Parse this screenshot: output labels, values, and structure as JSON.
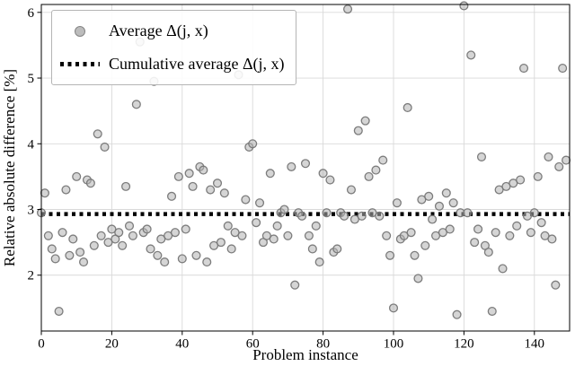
{
  "chart_data": {
    "type": "scatter",
    "title": "",
    "xlabel": "Problem instance",
    "ylabel": "Relative absolute difference [%]",
    "xlim": [
      0,
      150
    ],
    "ylim": [
      1.15,
      6.12
    ],
    "x_ticks": [
      0,
      20,
      40,
      60,
      80,
      100,
      120,
      140
    ],
    "y_ticks": [
      2,
      3,
      4,
      5,
      6
    ],
    "grid": true,
    "legend": [
      "Average Δ(j, x)",
      "Cumulative average Δ(j, x)"
    ],
    "legend_position": "upper left",
    "cumulative_average": 2.93,
    "marker_color": "#b3b3b3",
    "marker_edge_color": "#767676",
    "line_color": "#000000",
    "grid_color": "#d9d9d9",
    "series": [
      {
        "name": "Average Δ(j, x)",
        "x": [
          0,
          1,
          2,
          3,
          4,
          5,
          6,
          7,
          8,
          9,
          10,
          11,
          12,
          13,
          14,
          15,
          16,
          17,
          18,
          19,
          20,
          21,
          22,
          23,
          24,
          25,
          26,
          27,
          28,
          29,
          30,
          31,
          32,
          33,
          34,
          35,
          36,
          37,
          38,
          39,
          40,
          41,
          42,
          43,
          44,
          45,
          46,
          47,
          48,
          49,
          50,
          51,
          52,
          53,
          54,
          55,
          56,
          57,
          58,
          59,
          60,
          61,
          62,
          63,
          64,
          65,
          66,
          67,
          68,
          69,
          70,
          71,
          72,
          73,
          74,
          75,
          76,
          77,
          78,
          79,
          80,
          81,
          82,
          83,
          84,
          85,
          86,
          87,
          88,
          89,
          90,
          91,
          92,
          93,
          94,
          95,
          96,
          97,
          98,
          99,
          100,
          101,
          102,
          103,
          104,
          105,
          106,
          107,
          108,
          109,
          110,
          111,
          112,
          113,
          114,
          115,
          116,
          117,
          118,
          119,
          120,
          121,
          122,
          123,
          124,
          125,
          126,
          127,
          128,
          129,
          130,
          131,
          132,
          133,
          134,
          135,
          136,
          137,
          138,
          139,
          140,
          141,
          142,
          143,
          144,
          145,
          146,
          147,
          148,
          149
        ],
        "y": [
          2.95,
          3.25,
          2.6,
          2.4,
          2.25,
          1.45,
          2.65,
          3.3,
          2.3,
          2.55,
          3.5,
          2.35,
          2.2,
          3.45,
          3.4,
          2.45,
          4.15,
          2.6,
          3.95,
          2.5,
          2.7,
          2.55,
          2.65,
          2.45,
          3.35,
          2.75,
          2.6,
          4.6,
          5.55,
          2.65,
          2.7,
          2.4,
          4.95,
          2.3,
          2.55,
          2.2,
          2.6,
          3.2,
          2.65,
          3.5,
          2.25,
          2.7,
          3.55,
          3.35,
          2.3,
          3.65,
          3.6,
          2.2,
          3.3,
          2.45,
          3.4,
          2.5,
          3.25,
          2.75,
          2.4,
          2.65,
          5.05,
          2.6,
          3.15,
          3.95,
          4.0,
          2.8,
          3.1,
          2.5,
          2.6,
          3.55,
          2.55,
          2.75,
          2.95,
          3.0,
          2.6,
          3.65,
          1.85,
          2.95,
          2.9,
          3.7,
          2.6,
          2.4,
          2.75,
          2.2,
          3.55,
          2.95,
          3.45,
          2.35,
          2.4,
          2.95,
          2.9,
          6.05,
          3.3,
          2.85,
          4.2,
          2.9,
          4.35,
          3.5,
          2.95,
          3.6,
          2.9,
          3.75,
          2.6,
          2.3,
          1.5,
          3.1,
          2.55,
          2.6,
          4.55,
          2.65,
          2.3,
          1.95,
          3.15,
          2.45,
          3.2,
          2.85,
          2.6,
          3.05,
          2.65,
          3.25,
          2.7,
          3.1,
          1.4,
          2.95,
          6.1,
          2.95,
          5.35,
          2.5,
          2.7,
          3.8,
          2.45,
          2.35,
          1.45,
          2.65,
          3.3,
          2.1,
          3.35,
          2.6,
          3.4,
          2.75,
          3.45,
          5.15,
          2.9,
          2.65,
          2.95,
          3.5,
          2.8,
          2.6,
          3.8,
          2.55,
          1.85,
          3.65,
          5.15,
          3.75
        ]
      }
    ]
  }
}
